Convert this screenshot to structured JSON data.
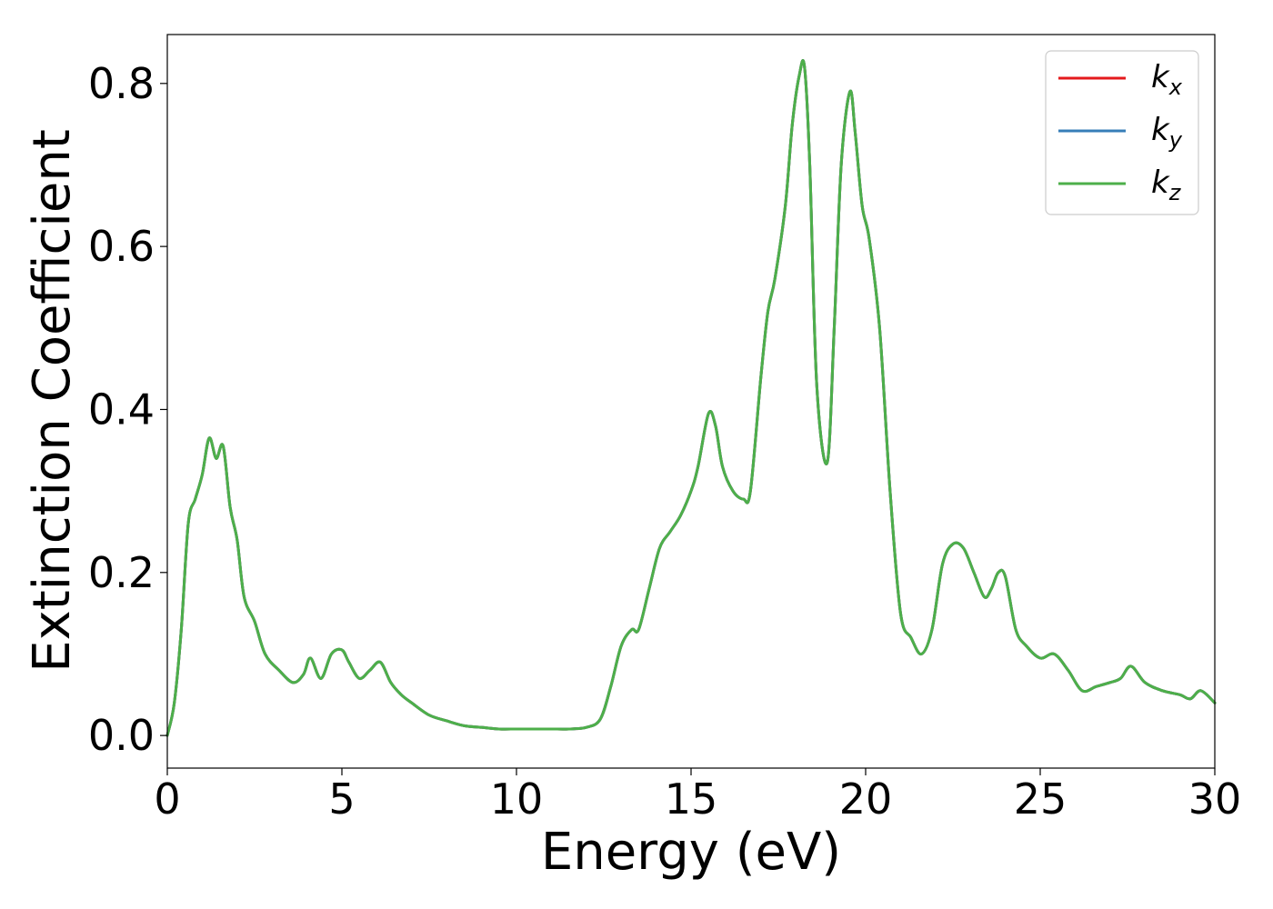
{
  "chart_data": {
    "type": "line",
    "xlabel": "Energy (eV)",
    "ylabel": "Extinction Coefficient",
    "xlim": [
      0,
      30
    ],
    "ylim": [
      -0.04,
      0.86
    ],
    "xticks": [
      0,
      5,
      10,
      15,
      20,
      25,
      30
    ],
    "xtick_labels": [
      "0",
      "5",
      "10",
      "15",
      "20",
      "25",
      "30"
    ],
    "yticks": [
      0.0,
      0.2,
      0.4,
      0.6,
      0.8
    ],
    "ytick_labels": [
      "0.0",
      "0.2",
      "0.4",
      "0.6",
      "0.8"
    ],
    "grid": false,
    "legend_position": "top-right",
    "x": [
      0,
      0.2,
      0.4,
      0.6,
      0.8,
      1.0,
      1.2,
      1.4,
      1.6,
      1.8,
      2.0,
      2.2,
      2.5,
      2.8,
      3.2,
      3.6,
      3.9,
      4.1,
      4.4,
      4.7,
      5.0,
      5.2,
      5.5,
      5.8,
      6.1,
      6.4,
      6.7,
      7.0,
      7.5,
      8.0,
      8.5,
      9.0,
      9.5,
      10.0,
      10.5,
      11.0,
      11.5,
      12.0,
      12.4,
      12.7,
      13.0,
      13.3,
      13.5,
      13.8,
      14.1,
      14.4,
      14.7,
      15.0,
      15.2,
      15.5,
      15.7,
      15.9,
      16.2,
      16.5,
      16.7,
      17.0,
      17.2,
      17.4,
      17.7,
      17.9,
      18.1,
      18.25,
      18.4,
      18.6,
      18.9,
      19.1,
      19.3,
      19.55,
      19.7,
      19.9,
      20.1,
      20.4,
      20.7,
      21.0,
      21.3,
      21.6,
      21.9,
      22.2,
      22.5,
      22.8,
      23.1,
      23.4,
      23.6,
      23.8,
      24.0,
      24.3,
      24.6,
      25.0,
      25.4,
      25.8,
      26.2,
      26.6,
      27.0,
      27.3,
      27.6,
      28.0,
      28.5,
      29.0,
      29.3,
      29.6,
      30.0
    ],
    "series": [
      {
        "name": "k_x",
        "label_main": "k",
        "label_sub": "x",
        "color": "#e41a1c",
        "values": [
          0.0,
          0.04,
          0.13,
          0.26,
          0.29,
          0.32,
          0.365,
          0.34,
          0.355,
          0.28,
          0.24,
          0.17,
          0.14,
          0.1,
          0.08,
          0.065,
          0.075,
          0.095,
          0.07,
          0.1,
          0.105,
          0.09,
          0.07,
          0.08,
          0.09,
          0.065,
          0.05,
          0.04,
          0.025,
          0.018,
          0.012,
          0.01,
          0.008,
          0.008,
          0.008,
          0.008,
          0.008,
          0.01,
          0.02,
          0.06,
          0.11,
          0.13,
          0.13,
          0.18,
          0.23,
          0.25,
          0.27,
          0.3,
          0.33,
          0.395,
          0.38,
          0.33,
          0.3,
          0.29,
          0.3,
          0.44,
          0.52,
          0.56,
          0.65,
          0.75,
          0.81,
          0.82,
          0.7,
          0.43,
          0.335,
          0.5,
          0.7,
          0.79,
          0.74,
          0.65,
          0.61,
          0.5,
          0.3,
          0.15,
          0.12,
          0.1,
          0.13,
          0.21,
          0.235,
          0.23,
          0.2,
          0.17,
          0.18,
          0.2,
          0.195,
          0.13,
          0.11,
          0.095,
          0.1,
          0.08,
          0.055,
          0.06,
          0.065,
          0.07,
          0.085,
          0.065,
          0.055,
          0.05,
          0.045,
          0.055,
          0.04
        ]
      },
      {
        "name": "k_y",
        "label_main": "k",
        "label_sub": "y",
        "color": "#377eb8",
        "values": [
          0.0,
          0.04,
          0.13,
          0.26,
          0.29,
          0.32,
          0.365,
          0.34,
          0.355,
          0.28,
          0.24,
          0.17,
          0.14,
          0.1,
          0.08,
          0.065,
          0.075,
          0.095,
          0.07,
          0.1,
          0.105,
          0.09,
          0.07,
          0.08,
          0.09,
          0.065,
          0.05,
          0.04,
          0.025,
          0.018,
          0.012,
          0.01,
          0.008,
          0.008,
          0.008,
          0.008,
          0.008,
          0.01,
          0.02,
          0.06,
          0.11,
          0.13,
          0.13,
          0.18,
          0.23,
          0.25,
          0.27,
          0.3,
          0.33,
          0.395,
          0.38,
          0.33,
          0.3,
          0.29,
          0.3,
          0.44,
          0.52,
          0.56,
          0.65,
          0.75,
          0.81,
          0.82,
          0.7,
          0.43,
          0.335,
          0.5,
          0.7,
          0.79,
          0.74,
          0.65,
          0.61,
          0.5,
          0.3,
          0.15,
          0.12,
          0.1,
          0.13,
          0.21,
          0.235,
          0.23,
          0.2,
          0.17,
          0.18,
          0.2,
          0.195,
          0.13,
          0.11,
          0.095,
          0.1,
          0.08,
          0.055,
          0.06,
          0.065,
          0.07,
          0.085,
          0.065,
          0.055,
          0.05,
          0.045,
          0.055,
          0.04
        ]
      },
      {
        "name": "k_z",
        "label_main": "k",
        "label_sub": "z",
        "color": "#4daf4a",
        "values": [
          0.0,
          0.04,
          0.13,
          0.26,
          0.29,
          0.32,
          0.365,
          0.34,
          0.355,
          0.28,
          0.24,
          0.17,
          0.14,
          0.1,
          0.08,
          0.065,
          0.075,
          0.095,
          0.07,
          0.1,
          0.105,
          0.09,
          0.07,
          0.08,
          0.09,
          0.065,
          0.05,
          0.04,
          0.025,
          0.018,
          0.012,
          0.01,
          0.008,
          0.008,
          0.008,
          0.008,
          0.008,
          0.01,
          0.02,
          0.06,
          0.11,
          0.13,
          0.13,
          0.18,
          0.23,
          0.25,
          0.27,
          0.3,
          0.33,
          0.395,
          0.38,
          0.33,
          0.3,
          0.29,
          0.3,
          0.44,
          0.52,
          0.56,
          0.65,
          0.75,
          0.81,
          0.82,
          0.7,
          0.43,
          0.335,
          0.5,
          0.7,
          0.79,
          0.74,
          0.65,
          0.61,
          0.5,
          0.3,
          0.15,
          0.12,
          0.1,
          0.13,
          0.21,
          0.235,
          0.23,
          0.2,
          0.17,
          0.18,
          0.2,
          0.195,
          0.13,
          0.11,
          0.095,
          0.1,
          0.08,
          0.055,
          0.06,
          0.065,
          0.07,
          0.085,
          0.065,
          0.055,
          0.05,
          0.045,
          0.055,
          0.04
        ]
      }
    ]
  }
}
